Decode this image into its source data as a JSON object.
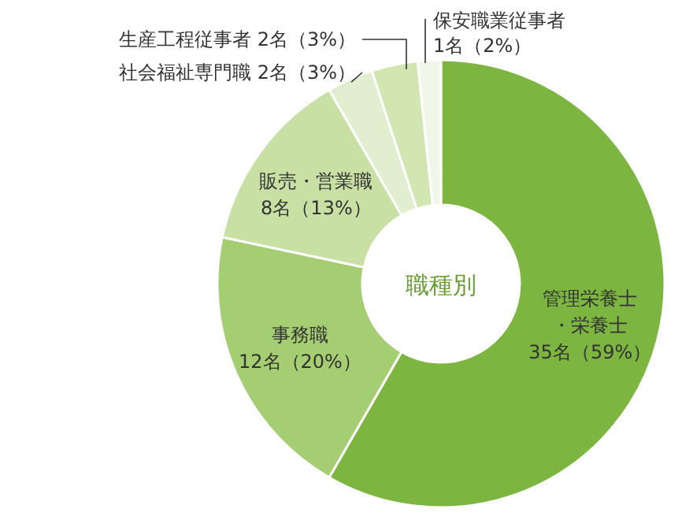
{
  "chart_data": {
    "type": "donut",
    "title": "職種別",
    "categories": [
      "管理栄養士・栄養士",
      "事務職",
      "販売・営業職",
      "社会福祉専門職",
      "生産工程従事者",
      "保安職業従事者"
    ],
    "values": [
      35,
      12,
      8,
      2,
      2,
      1
    ],
    "value_labels": [
      "35名（59%）",
      "12名（20%）",
      "8名（13%）",
      "2名（3%）",
      "2名（3%）",
      "1名（2%）"
    ],
    "colors": [
      "#7cb53f",
      "#a5cd72",
      "#c8e0a4",
      "#e1eed0",
      "#d2e6b2",
      "#f1f7e8"
    ]
  }
}
